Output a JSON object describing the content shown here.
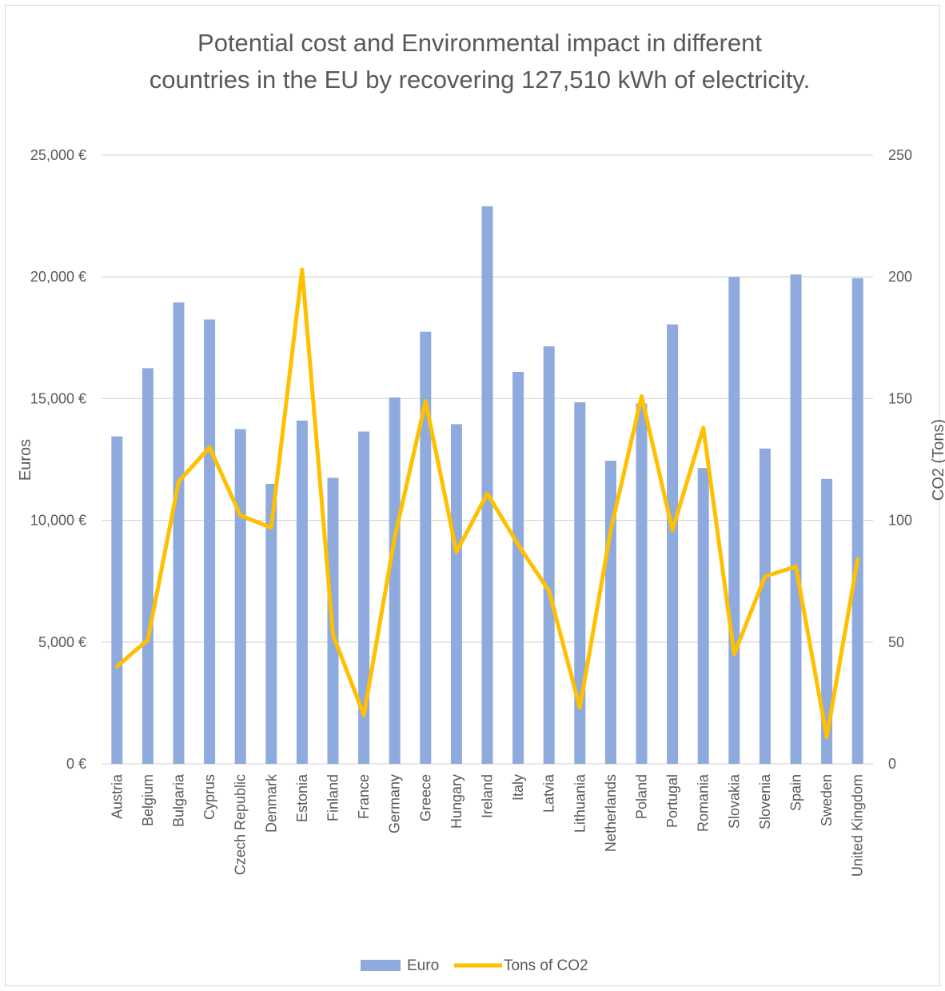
{
  "chart_data": {
    "type": "bar",
    "title": "Potential cost and Environmental impact in different countries in the EU by recovering 127,510 kWh of electricity.",
    "title_lines": [
      "Potential cost and Environmental impact in different",
      "countries in the EU by recovering 127,510 kWh of electricity."
    ],
    "ylabel": "Euros",
    "y2label": "CO2 (Tons)",
    "ylim": [
      0,
      25000
    ],
    "y2lim": [
      0,
      250
    ],
    "yticks": [
      "0 €",
      "5,000 €",
      "10,000 €",
      "15,000 €",
      "20,000 €",
      "25,000 €"
    ],
    "y2ticks": [
      "0",
      "50",
      "100",
      "150",
      "200",
      "250"
    ],
    "grid": true,
    "legend_position": "bottom",
    "categories": [
      "Austria",
      "Belgium",
      "Bulgaria",
      "Cyprus",
      "Czech Republic",
      "Denmark",
      "Estonia",
      "Finland",
      "France",
      "Germany",
      "Greece",
      "Hungary",
      "Ireland",
      "Italy",
      "Latvia",
      "Lithuania",
      "Netherlands",
      "Poland",
      "Portugal",
      "Romania",
      "Slovakia",
      "Slovenia",
      "Spain",
      "Sweden",
      "United Kingdom"
    ],
    "series": [
      {
        "name": "Euro",
        "type": "bar",
        "axis": "left",
        "color": "#8faadc",
        "values": [
          13450,
          16250,
          18950,
          18250,
          13750,
          11500,
          14100,
          11750,
          13650,
          15050,
          17750,
          13950,
          22900,
          16100,
          17150,
          14850,
          12450,
          14800,
          18050,
          12150,
          20000,
          12950,
          20100,
          11700,
          19950
        ]
      },
      {
        "name": "Tons of CO2",
        "type": "line",
        "axis": "right",
        "color": "#ffc000",
        "values": [
          40,
          51,
          116,
          130,
          102,
          97,
          203,
          53,
          20,
          93,
          149,
          87,
          111,
          90,
          71,
          23,
          96,
          151,
          96,
          138,
          45,
          77,
          81,
          11,
          84
        ]
      }
    ]
  }
}
